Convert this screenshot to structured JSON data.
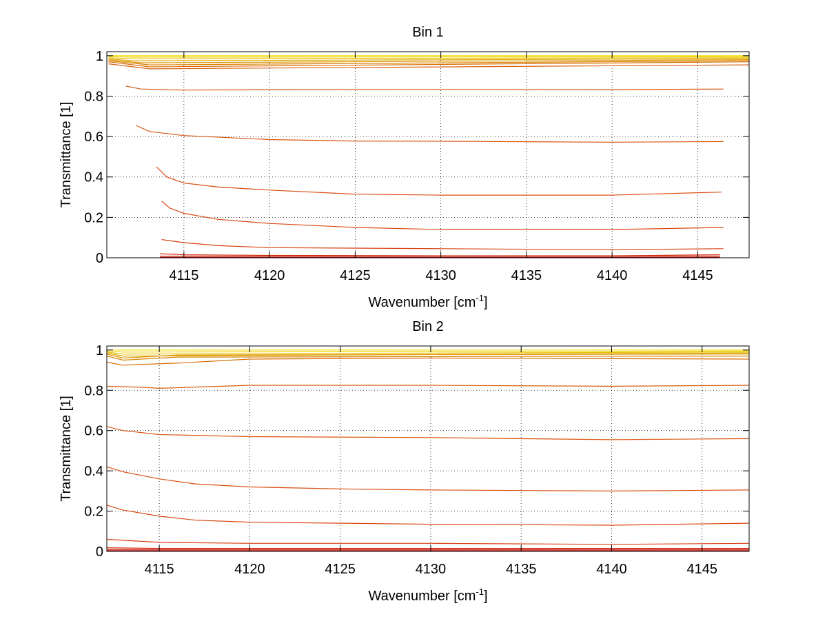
{
  "chart_data": [
    {
      "type": "line",
      "title": "Bin 1",
      "xlabel": "Wavenumber [cm",
      "xlabel_sup": "-1",
      "xlabel_suffix": "]",
      "ylabel": "Transmittance [1]",
      "xlim": [
        4110.5,
        4148
      ],
      "ylim": [
        0,
        1.02
      ],
      "xticks": [
        "4115",
        "4120",
        "4125",
        "4130",
        "4135",
        "4140",
        "4145"
      ],
      "xtick_values": [
        4115,
        4120,
        4125,
        4130,
        4135,
        4140,
        4145
      ],
      "yticks": [
        "0",
        "0.2",
        "0.4",
        "0.6",
        "0.8",
        "1"
      ],
      "ytick_values": [
        0,
        0.2,
        0.4,
        0.6,
        0.8,
        1
      ],
      "grid": true,
      "series": [
        {
          "color": "#f0e000",
          "x": [
            4110.6,
            4112,
            4148
          ],
          "y": [
            1.0,
            1.0,
            1.0
          ]
        },
        {
          "color": "#f0d000",
          "x": [
            4110.6,
            4112,
            4148
          ],
          "y": [
            0.995,
            0.993,
            0.995
          ]
        },
        {
          "color": "#e8c000",
          "x": [
            4110.6,
            4112,
            4148
          ],
          "y": [
            0.99,
            0.985,
            0.99
          ]
        },
        {
          "color": "#e0a800",
          "x": [
            4110.6,
            4112,
            4148
          ],
          "y": [
            0.985,
            0.975,
            0.985
          ]
        },
        {
          "color": "#dc9400",
          "x": [
            4110.6,
            4112.5,
            4148
          ],
          "y": [
            0.98,
            0.965,
            0.98
          ]
        },
        {
          "color": "#d88000",
          "x": [
            4110.6,
            4113,
            4148
          ],
          "y": [
            0.975,
            0.955,
            0.975
          ]
        },
        {
          "color": "#d86c00",
          "x": [
            4110.6,
            4113,
            4148
          ],
          "y": [
            0.97,
            0.945,
            0.97
          ]
        },
        {
          "color": "#d86010",
          "x": [
            4110.6,
            4113,
            4148
          ],
          "y": [
            0.96,
            0.935,
            0.955
          ]
        },
        {
          "color": "#d85a10",
          "x": [
            4111.6,
            4112.5,
            4115,
            4120,
            4130,
            4140,
            4146.5
          ],
          "y": [
            0.85,
            0.835,
            0.83,
            0.832,
            0.833,
            0.832,
            0.835
          ]
        },
        {
          "color": "#d85410",
          "x": [
            4112.2,
            4113,
            4115,
            4120,
            4125,
            4130,
            4140,
            4146.5
          ],
          "y": [
            0.655,
            0.625,
            0.605,
            0.585,
            0.578,
            0.577,
            0.572,
            0.575
          ]
        },
        {
          "color": "#d84e10",
          "x": [
            4113.4,
            4114,
            4115,
            4117,
            4120,
            4125,
            4130,
            4140,
            4146.4
          ],
          "y": [
            0.45,
            0.4,
            0.37,
            0.35,
            0.335,
            0.315,
            0.31,
            0.31,
            0.325
          ]
        },
        {
          "color": "#d84810",
          "x": [
            4113.7,
            4114.2,
            4115,
            4117,
            4120,
            4125,
            4130,
            4140,
            4146.5
          ],
          "y": [
            0.28,
            0.245,
            0.22,
            0.19,
            0.17,
            0.15,
            0.14,
            0.14,
            0.15
          ]
        },
        {
          "color": "#d84010",
          "x": [
            4113.7,
            4115,
            4117,
            4120,
            4130,
            4140,
            4146.5
          ],
          "y": [
            0.09,
            0.075,
            0.06,
            0.05,
            0.045,
            0.04,
            0.045
          ]
        },
        {
          "color": "#d43010",
          "x": [
            4113.6,
            4115,
            4120,
            4130,
            4140,
            4146.3
          ],
          "y": [
            0.02,
            0.015,
            0.012,
            0.01,
            0.01,
            0.015
          ]
        },
        {
          "color": "#cc1a10",
          "x": [
            4113.6,
            4146.3
          ],
          "y": [
            0.008,
            0.008
          ]
        },
        {
          "color": "#b80000",
          "x": [
            4113.6,
            4146.3
          ],
          "y": [
            0.002,
            0.002
          ]
        }
      ]
    },
    {
      "type": "line",
      "title": "Bin 2",
      "xlabel": "Wavenumber [cm",
      "xlabel_sup": "-1",
      "xlabel_suffix": "]",
      "ylabel": "Transmittance [1]",
      "xlim": [
        4112.1,
        4147.6
      ],
      "ylim": [
        0,
        1.02
      ],
      "xticks": [
        "4115",
        "4120",
        "4125",
        "4130",
        "4135",
        "4140",
        "4145"
      ],
      "xtick_values": [
        4115,
        4120,
        4125,
        4130,
        4135,
        4140,
        4145
      ],
      "yticks": [
        "0",
        "0.2",
        "0.4",
        "0.6",
        "0.8",
        "1"
      ],
      "ytick_values": [
        0,
        0.2,
        0.4,
        0.6,
        0.8,
        1
      ],
      "grid": true,
      "series": [
        {
          "color": "#f0e000",
          "x": [
            4112.1,
            4147.6
          ],
          "y": [
            1.0,
            1.0
          ]
        },
        {
          "color": "#f0d000",
          "x": [
            4112.1,
            4113,
            4147.6
          ],
          "y": [
            0.995,
            0.99,
            0.995
          ]
        },
        {
          "color": "#e8c000",
          "x": [
            4112.1,
            4113,
            4147.6
          ],
          "y": [
            0.99,
            0.98,
            0.99
          ]
        },
        {
          "color": "#e0a800",
          "x": [
            4112.1,
            4113,
            4147.6
          ],
          "y": [
            0.985,
            0.97,
            0.985
          ]
        },
        {
          "color": "#dc9400",
          "x": [
            4112.1,
            4113,
            4116,
            4147.6
          ],
          "y": [
            0.98,
            0.96,
            0.975,
            0.98
          ]
        },
        {
          "color": "#d88000",
          "x": [
            4112.1,
            4113,
            4116,
            4147.6
          ],
          "y": [
            0.97,
            0.95,
            0.965,
            0.97
          ]
        },
        {
          "color": "#d86c00",
          "x": [
            4112.1,
            4113,
            4116,
            4120,
            4130,
            4147.6
          ],
          "y": [
            0.94,
            0.925,
            0.935,
            0.955,
            0.96,
            0.955
          ]
        },
        {
          "color": "#d85e10",
          "x": [
            4112.1,
            4114,
            4115,
            4120,
            4130,
            4140,
            4147.6
          ],
          "y": [
            0.82,
            0.815,
            0.81,
            0.825,
            0.825,
            0.82,
            0.825
          ]
        },
        {
          "color": "#d85610",
          "x": [
            4112.1,
            4113,
            4115,
            4120,
            4130,
            4140,
            4147.6
          ],
          "y": [
            0.62,
            0.6,
            0.58,
            0.57,
            0.565,
            0.555,
            0.56
          ]
        },
        {
          "color": "#d84e10",
          "x": [
            4112.1,
            4113,
            4115,
            4117,
            4120,
            4125,
            4130,
            4140,
            4147.6
          ],
          "y": [
            0.42,
            0.395,
            0.36,
            0.335,
            0.32,
            0.31,
            0.305,
            0.3,
            0.305
          ]
        },
        {
          "color": "#d84810",
          "x": [
            4112.1,
            4113,
            4115,
            4117,
            4120,
            4125,
            4130,
            4140,
            4147.6
          ],
          "y": [
            0.23,
            0.205,
            0.175,
            0.155,
            0.145,
            0.14,
            0.135,
            0.13,
            0.14
          ]
        },
        {
          "color": "#d84010",
          "x": [
            4112.1,
            4113,
            4115,
            4120,
            4130,
            4140,
            4147.6
          ],
          "y": [
            0.06,
            0.055,
            0.045,
            0.04,
            0.04,
            0.035,
            0.04
          ]
        },
        {
          "color": "#d43010",
          "x": [
            4112.1,
            4115,
            4147.6
          ],
          "y": [
            0.018,
            0.015,
            0.015
          ]
        },
        {
          "color": "#cc1a10",
          "x": [
            4112.1,
            4147.6
          ],
          "y": [
            0.01,
            0.01
          ]
        },
        {
          "color": "#b80000",
          "x": [
            4112.1,
            4147.6
          ],
          "y": [
            0.004,
            0.004
          ]
        }
      ]
    }
  ]
}
